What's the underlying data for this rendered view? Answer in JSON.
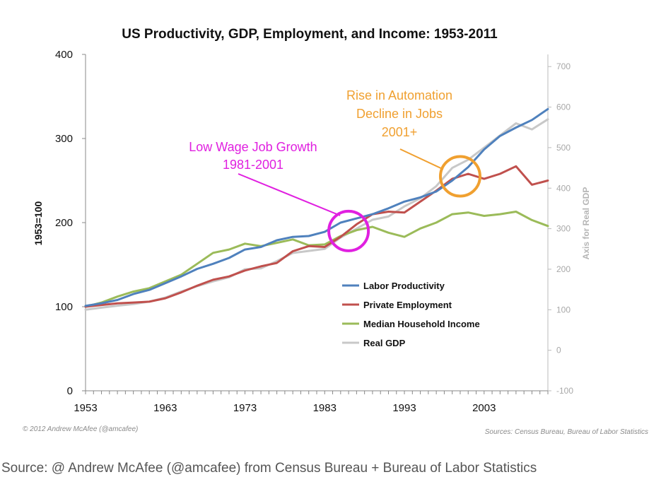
{
  "chart_data": {
    "type": "line",
    "title": "US Productivity, GDP, Employment, and Income: 1953-2011",
    "ylabel": "1953=100",
    "y2label": "Axis for Real GDP",
    "xlim": [
      1953,
      2011
    ],
    "ylim": [
      0,
      400
    ],
    "y2lim": [
      -100,
      730
    ],
    "xticks": [
      1953,
      1963,
      1973,
      1983,
      1993,
      2003
    ],
    "yticks": [
      0,
      100,
      200,
      300,
      400
    ],
    "y2ticks": [
      -100,
      0,
      100,
      200,
      300,
      400,
      500,
      600,
      700
    ],
    "series": [
      {
        "name": "Labor Productivity",
        "color": "#4f81bd",
        "axis": "left",
        "x": [
          1953,
          1955,
          1957,
          1959,
          1961,
          1963,
          1965,
          1967,
          1969,
          1971,
          1973,
          1975,
          1977,
          1979,
          1981,
          1983,
          1985,
          1987,
          1989,
          1991,
          1993,
          1995,
          1997,
          1999,
          2001,
          2003,
          2005,
          2007,
          2009,
          2011
        ],
        "y": [
          101,
          104,
          108,
          115,
          120,
          128,
          136,
          145,
          151,
          158,
          168,
          171,
          179,
          183,
          184,
          189,
          200,
          205,
          210,
          217,
          225,
          230,
          237,
          250,
          266,
          287,
          303,
          313,
          322,
          335
        ]
      },
      {
        "name": "Private Employment",
        "color": "#c0504d",
        "axis": "left",
        "x": [
          1953,
          1955,
          1957,
          1959,
          1961,
          1963,
          1965,
          1967,
          1969,
          1971,
          1973,
          1975,
          1977,
          1979,
          1981,
          1983,
          1985,
          1987,
          1989,
          1991,
          1993,
          1995,
          1997,
          1999,
          2001,
          2003,
          2005,
          2007,
          2009,
          2011
        ],
        "y": [
          100,
          102,
          104,
          105,
          106,
          110,
          117,
          125,
          132,
          136,
          143,
          148,
          152,
          166,
          172,
          171,
          183,
          198,
          210,
          213,
          212,
          225,
          238,
          252,
          258,
          252,
          258,
          267,
          245,
          250
        ]
      },
      {
        "name": "Median Household Income",
        "color": "#9bbb59",
        "axis": "left",
        "x": [
          1953,
          1955,
          1957,
          1959,
          1961,
          1963,
          1965,
          1967,
          1969,
          1971,
          1973,
          1975,
          1977,
          1979,
          1981,
          1983,
          1985,
          1987,
          1989,
          1991,
          1993,
          1995,
          1997,
          1999,
          2001,
          2003,
          2005,
          2007,
          2009,
          2011
        ],
        "y": [
          100,
          105,
          112,
          118,
          122,
          130,
          138,
          151,
          164,
          168,
          175,
          172,
          176,
          180,
          173,
          174,
          184,
          191,
          195,
          188,
          183,
          193,
          200,
          210,
          212,
          208,
          210,
          213,
          203,
          196
        ]
      },
      {
        "name": "Real GDP",
        "color": "#c8c8c8",
        "axis": "right",
        "x": [
          1953,
          1955,
          1957,
          1959,
          1961,
          1963,
          1965,
          1967,
          1969,
          1971,
          1973,
          1975,
          1977,
          1979,
          1981,
          1983,
          1985,
          1987,
          1989,
          1991,
          1993,
          1995,
          1997,
          1999,
          2001,
          2003,
          2005,
          2007,
          2009,
          2011
        ],
        "y": [
          100,
          105,
          110,
          114,
          120,
          130,
          145,
          158,
          170,
          180,
          200,
          202,
          220,
          240,
          245,
          250,
          278,
          300,
          322,
          330,
          355,
          375,
          405,
          450,
          470,
          500,
          530,
          560,
          545,
          570
        ]
      }
    ],
    "annotations": [
      {
        "lines": [
          "Low Wage Job Growth",
          "1981-2001"
        ],
        "color": "#e020e0",
        "center_x": 1986,
        "center_y": 190
      },
      {
        "lines": [
          "Rise in Automation",
          "Decline in Jobs",
          "2001+"
        ],
        "color": "#f0a030",
        "center_x": 2000,
        "center_y": 255
      }
    ]
  },
  "credit_left": "© 2012 Andrew McAfee  (@amcafee)",
  "credit_right": "Sources: Census Bureau, Bureau of Labor Statistics",
  "footer": "Source: @ Andrew McAfee (@amcafee) from Census Bureau + Bureau of Labor Statistics"
}
